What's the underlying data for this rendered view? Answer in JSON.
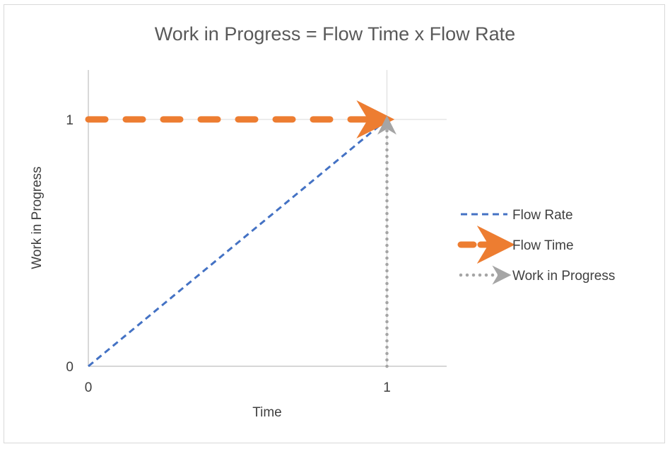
{
  "chart_data": {
    "type": "line",
    "title": "Work in Progress = Flow Time x Flow Rate",
    "xlabel": "Time",
    "ylabel": "Work in Progress",
    "xlim": [
      0,
      1.2
    ],
    "ylim": [
      0,
      1.2
    ],
    "x_ticks": [
      0,
      1
    ],
    "y_ticks": [
      0,
      1
    ],
    "x_tick_labels": [
      "0",
      "1"
    ],
    "y_tick_labels": [
      "0",
      "1"
    ],
    "grid": true,
    "legend_position": "right",
    "series": [
      {
        "name": "Flow Rate",
        "color": "#4472c4",
        "line_style": "dashed",
        "marker_end": "none",
        "points": [
          [
            0,
            0
          ],
          [
            1,
            1
          ]
        ]
      },
      {
        "name": "Flow Time",
        "color": "#ed7d31",
        "line_style": "long-dash-thick",
        "marker_end": "arrow",
        "points": [
          [
            0,
            1
          ],
          [
            1,
            1
          ]
        ]
      },
      {
        "name": "Work in Progress",
        "color": "#a5a5a5",
        "line_style": "dotted",
        "marker_end": "arrow",
        "points": [
          [
            1,
            0
          ],
          [
            1,
            1
          ]
        ]
      }
    ]
  }
}
